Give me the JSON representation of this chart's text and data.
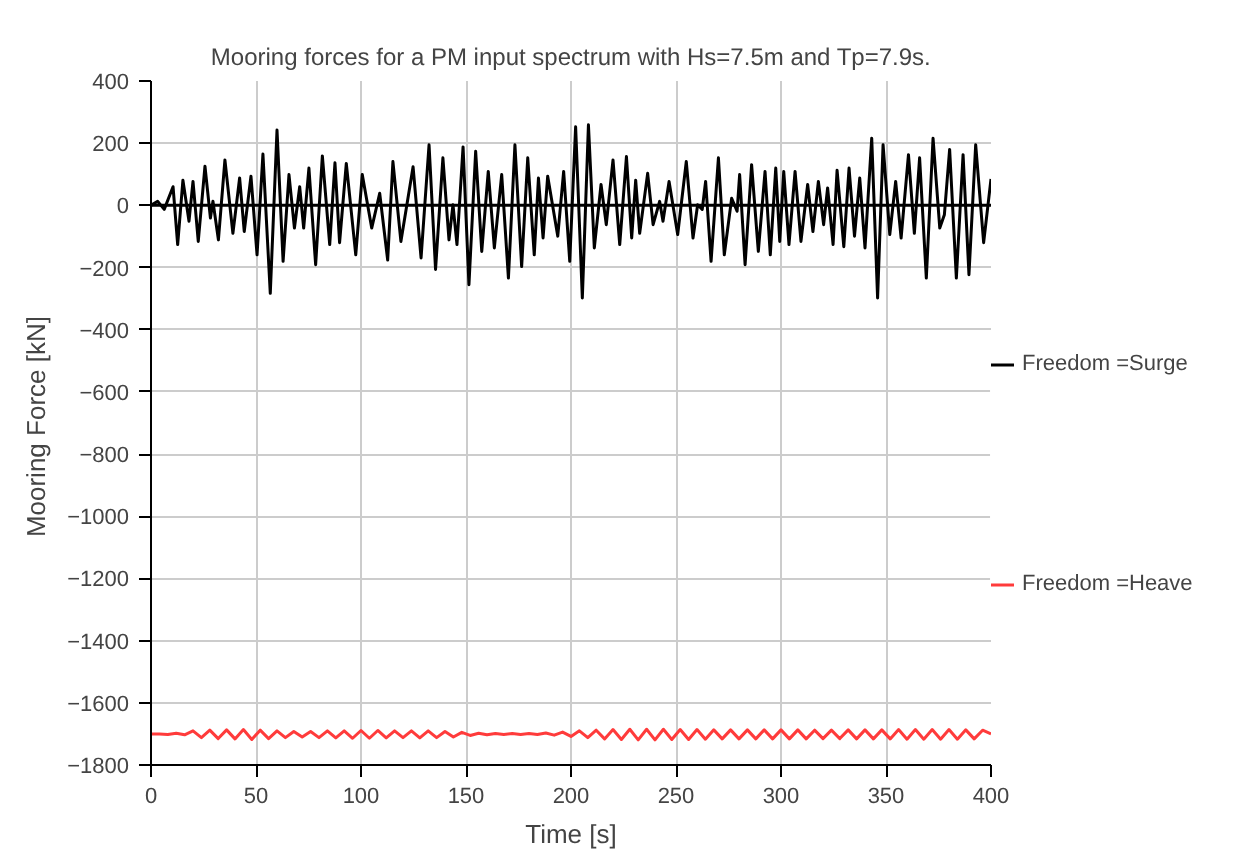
{
  "chart_data": {
    "type": "line",
    "title": "Mooring forces for a PM input spectrum with Hs=7.5m and Tp=7.9s.",
    "xlabel": "Time [s]",
    "ylabel": "Mooring Force  [kN]",
    "xlim": [
      0,
      400
    ],
    "xticks": [
      0,
      50,
      100,
      150,
      200,
      250,
      300,
      350,
      400
    ],
    "ylim": [
      -1800,
      400
    ],
    "yticks": [
      -1800,
      -1600,
      -1400,
      -1200,
      -1000,
      -800,
      -600,
      -400,
      -200,
      0,
      200,
      400
    ],
    "grid": true,
    "legend": "right",
    "marker": "none",
    "line_style": "solid",
    "ref_lines": [
      {
        "axis": "y",
        "value": 0,
        "color": "#000000"
      }
    ],
    "series": [
      {
        "name": "Freedom =Surge",
        "color": "#000000",
        "x": [
          0,
          3.2,
          6.3,
          10.5,
          12.7,
          15.2,
          18.1,
          20.0,
          22.5,
          25.7,
          28.3,
          29.5,
          32.1,
          35.2,
          39.0,
          42.2,
          44.4,
          47.6,
          50.5,
          53.3,
          56.8,
          60.0,
          62.9,
          65.7,
          68.3,
          70.8,
          72.7,
          75.2,
          78.4,
          81.6,
          85.1,
          87.6,
          89.8,
          93.0,
          97.5,
          100.6,
          105.1,
          108.9,
          112.7,
          115.2,
          119.0,
          124.8,
          128.6,
          132.4,
          135.5,
          139.0,
          141.9,
          143.8,
          145.7,
          148.6,
          151.4,
          154.6,
          157.5,
          160.6,
          163.5,
          167.0,
          170.2,
          173.3,
          176.5,
          179.4,
          182.5,
          184.5,
          186.7,
          188.9,
          193.7,
          196.5,
          199.4,
          202.2,
          205.4,
          208.3,
          211.1,
          214.3,
          216.8,
          220.0,
          223.2,
          226.4,
          228.9,
          230.8,
          232.7,
          236.5,
          239.1,
          242.2,
          243.8,
          246.7,
          250.8,
          254.9,
          258.1,
          260.3,
          262.5,
          264.1,
          266.7,
          270.2,
          273.0,
          276.5,
          279.1,
          280.3,
          282.9,
          286.0,
          289.2,
          292.4,
          294.9,
          297.5,
          299.4,
          301.3,
          303.8,
          306.7,
          309.5,
          312.7,
          315.2,
          317.8,
          320.3,
          322.2,
          324.8,
          326.7,
          329.9,
          332.4,
          335.0,
          337.5,
          340.0,
          343.2,
          346.0,
          348.6,
          351.8,
          354.6,
          357.2,
          360.7,
          363.5,
          366.0,
          369.2,
          372.4,
          375.6,
          377.8,
          380.3,
          383.5,
          386.7,
          389.5,
          392.7,
          396.5,
          400
        ],
        "values": [
          0,
          13,
          -13,
          60,
          -126,
          81,
          -51,
          77,
          -116,
          126,
          -41,
          13,
          -111,
          146,
          -90,
          88,
          -84,
          94,
          -159,
          165,
          -283,
          242,
          -180,
          99,
          -73,
          60,
          -73,
          120,
          -191,
          159,
          -126,
          137,
          -120,
          135,
          -159,
          99,
          -73,
          39,
          -176,
          141,
          -116,
          124,
          -169,
          195,
          -206,
          153,
          -111,
          2,
          -126,
          188,
          -255,
          174,
          -148,
          109,
          -137,
          99,
          -234,
          195,
          -197,
          153,
          -159,
          88,
          -105,
          94,
          -99,
          109,
          -180,
          253,
          -298,
          259,
          -137,
          67,
          -62,
          146,
          -126,
          157,
          -105,
          81,
          -90,
          103,
          -62,
          13,
          -51,
          77,
          -94,
          141,
          -105,
          2,
          -13,
          77,
          -180,
          153,
          -159,
          23,
          -19,
          99,
          -191,
          131,
          -148,
          109,
          -159,
          120,
          -116,
          109,
          -126,
          109,
          -116,
          67,
          -84,
          77,
          -62,
          56,
          -126,
          113,
          -133,
          120,
          -99,
          88,
          -137,
          216,
          -298,
          195,
          -94,
          77,
          -105,
          163,
          -90,
          153,
          -234,
          216,
          -73,
          -30,
          180,
          -234,
          163,
          -223,
          195,
          -120,
          85
        ]
      },
      {
        "name": "Freedom =Heave",
        "color": "#ff3b3b",
        "x": [
          0,
          4,
          8,
          12,
          16,
          20,
          24,
          28,
          32,
          36,
          40,
          44,
          48,
          52,
          56,
          60,
          64,
          68,
          72,
          76,
          80,
          84,
          88,
          92,
          96,
          100,
          104,
          108,
          112,
          116,
          120,
          124,
          128,
          132,
          136,
          140,
          144,
          148,
          152,
          156,
          160,
          164,
          168,
          172,
          176,
          180,
          184,
          188,
          192,
          196,
          200,
          204,
          208,
          212,
          216,
          220,
          224,
          228,
          232,
          236,
          240,
          244,
          248,
          252,
          256,
          260,
          264,
          268,
          272,
          276,
          280,
          284,
          288,
          292,
          296,
          300,
          304,
          308,
          312,
          316,
          320,
          324,
          328,
          332,
          336,
          340,
          344,
          348,
          352,
          356,
          360,
          364,
          368,
          372,
          376,
          380,
          384,
          388,
          392,
          396,
          400
        ],
        "values": [
          -1700,
          -1700,
          -1702,
          -1698,
          -1703,
          -1690,
          -1712,
          -1688,
          -1715,
          -1687,
          -1716,
          -1686,
          -1718,
          -1688,
          -1715,
          -1690,
          -1712,
          -1692,
          -1710,
          -1692,
          -1712,
          -1690,
          -1713,
          -1690,
          -1714,
          -1689,
          -1714,
          -1689,
          -1713,
          -1690,
          -1712,
          -1690,
          -1713,
          -1690,
          -1712,
          -1692,
          -1710,
          -1695,
          -1705,
          -1698,
          -1703,
          -1699,
          -1702,
          -1699,
          -1702,
          -1699,
          -1702,
          -1697,
          -1704,
          -1694,
          -1708,
          -1690,
          -1712,
          -1688,
          -1716,
          -1686,
          -1718,
          -1685,
          -1719,
          -1685,
          -1719,
          -1685,
          -1718,
          -1686,
          -1718,
          -1686,
          -1717,
          -1687,
          -1716,
          -1687,
          -1716,
          -1687,
          -1716,
          -1687,
          -1716,
          -1687,
          -1716,
          -1687,
          -1716,
          -1688,
          -1715,
          -1688,
          -1715,
          -1687,
          -1716,
          -1687,
          -1716,
          -1687,
          -1716,
          -1686,
          -1717,
          -1686,
          -1717,
          -1686,
          -1717,
          -1686,
          -1717,
          -1687,
          -1716,
          -1688,
          -1700
        ]
      }
    ]
  }
}
